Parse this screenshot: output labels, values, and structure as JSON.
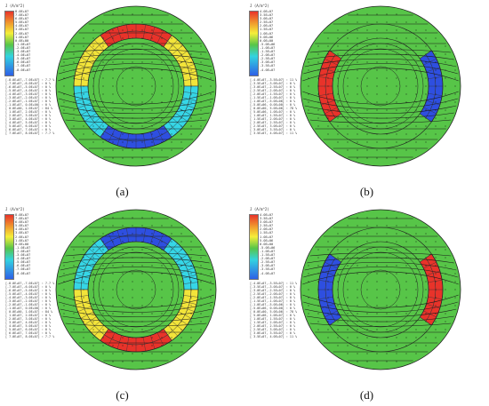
{
  "panels": [
    {
      "id": "a",
      "label": "(a)",
      "colorbar_title": "J (A/m^2)",
      "colorbar_ticks": [
        "8.0E+07",
        "7.0E+07",
        "6.0E+07",
        "5.0E+07",
        "4.0E+07",
        "3.0E+07",
        "2.0E+07",
        "1.0E+07",
        "0.0E+00",
        "-1.0E+07",
        "-2.0E+07",
        "-3.0E+07",
        "-4.0E+07",
        "-5.0E+07",
        "-6.0E+07",
        "-7.0E+07",
        "-8.0E+07"
      ],
      "legend_lines": [
        "[-8.0E+07,-7.0E+07] : 7.7 %",
        "[-7.0E+07,-6.0E+07] : 0 %",
        "[-6.0E+07,-5.0E+07] : 0 %",
        "[-5.0E+07,-4.0E+07] : 0 %",
        "[-4.0E+07,-3.0E+07] : 0 %",
        "[-3.0E+07,-2.0E+07] : 0 %",
        "[-2.0E+07,-1.0E+07] : 0 %",
        "[-1.0E+07, 0.0E+00] : 0 %",
        "[ 0.0E+00, 1.0E+07] : 84 %",
        "[ 1.0E+07, 2.0E+07] : 0 %",
        "[ 2.0E+07, 3.0E+07] : 0 %",
        "[ 3.0E+07, 4.0E+07] : 0 %",
        "[ 4.0E+07, 5.0E+07] : 0 %",
        "[ 5.0E+07, 6.0E+07] : 0 %",
        "[ 6.0E+07, 7.0E+07] : 0 %",
        "[ 7.0E+07, 8.0E+07] : 7.7 %"
      ],
      "coils": [
        {
          "name": "top",
          "start": -125,
          "end": -55,
          "color": "#e8332a"
        },
        {
          "name": "upper-left",
          "start": -180,
          "end": -125,
          "color": "#f2e43a"
        },
        {
          "name": "upper-right",
          "start": -55,
          "end": 0,
          "color": "#f2e43a"
        },
        {
          "name": "lower-right",
          "start": 0,
          "end": 55,
          "color": "#36d6e6"
        },
        {
          "name": "lower-left",
          "start": 125,
          "end": 180,
          "color": "#36d6e6"
        },
        {
          "name": "bottom",
          "start": 55,
          "end": 125,
          "color": "#2e4fe0"
        }
      ]
    },
    {
      "id": "b",
      "label": "(b)",
      "colorbar_title": "J (A/m^2)",
      "colorbar_ticks": [
        "4.0E+07",
        "3.5E+07",
        "3.0E+07",
        "2.5E+07",
        "2.0E+07",
        "1.5E+07",
        "1.0E+07",
        "5.0E+06",
        "0.0E+00",
        "-5.0E+06",
        "-1.0E+07",
        "-1.5E+07",
        "-2.0E+07",
        "-2.5E+07",
        "-3.0E+07",
        "-3.5E+07",
        "-4.0E+07"
      ],
      "legend_lines": [
        "[-4.0E+07,-3.5E+07] : 11 %",
        "[-3.5E+07,-3.0E+07] : 0 %",
        "[-3.0E+07,-2.5E+07] : 0 %",
        "[-2.5E+07,-2.0E+07] : 0 %",
        "[-2.0E+07,-1.5E+07] : 0 %",
        "[-1.5E+07,-1.0E+07] : 0 %",
        "[-1.0E+07,-5.0E+06] : 0 %",
        "[-5.0E+06, 0.0E+00] : 0 %",
        "[ 0.0E+00, 5.0E+06] : 78 %",
        "[ 5.0E+06, 1.0E+07] : 0 %",
        "[ 1.0E+07, 1.5E+07] : 0 %",
        "[ 1.5E+07, 2.0E+07] : 0 %",
        "[ 2.0E+07, 2.5E+07] : 0 %",
        "[ 2.5E+07, 3.0E+07] : 0 %",
        "[ 3.0E+07, 3.5E+07] : 0 %",
        "[ 3.5E+07, 4.0E+07] : 11 %"
      ],
      "coils": [
        {
          "name": "left",
          "start": 145,
          "end": 215,
          "color": "#e8332a"
        },
        {
          "name": "right",
          "start": -35,
          "end": 35,
          "color": "#2e4fe0"
        }
      ]
    },
    {
      "id": "c",
      "label": "(c)",
      "colorbar_title": "J (A/m^2)",
      "colorbar_ticks": [
        "8.0E+07",
        "7.0E+07",
        "6.0E+07",
        "5.0E+07",
        "4.0E+07",
        "3.0E+07",
        "2.0E+07",
        "1.0E+07",
        "0.0E+00",
        "-1.0E+07",
        "-2.0E+07",
        "-3.0E+07",
        "-4.0E+07",
        "-5.0E+07",
        "-6.0E+07",
        "-7.0E+07",
        "-8.0E+07"
      ],
      "legend_lines": [
        "[-8.0E+07,-7.0E+07] : 7.7 %",
        "[-7.0E+07,-6.0E+07] : 0 %",
        "[-6.0E+07,-5.0E+07] : 0 %",
        "[-5.0E+07,-4.0E+07] : 0 %",
        "[-4.0E+07,-3.0E+07] : 0 %",
        "[-3.0E+07,-2.0E+07] : 0 %",
        "[-2.0E+07,-1.0E+07] : 0 %",
        "[-1.0E+07, 0.0E+00] : 0 %",
        "[ 0.0E+00, 1.0E+07] : 84 %",
        "[ 1.0E+07, 2.0E+07] : 0 %",
        "[ 2.0E+07, 3.0E+07] : 0 %",
        "[ 3.0E+07, 4.0E+07] : 0 %",
        "[ 4.0E+07, 5.0E+07] : 0 %",
        "[ 5.0E+07, 6.0E+07] : 0 %",
        "[ 6.0E+07, 7.0E+07] : 0 %",
        "[ 7.0E+07, 8.0E+07] : 7.7 %"
      ],
      "coils": [
        {
          "name": "top",
          "start": -125,
          "end": -55,
          "color": "#2e4fe0"
        },
        {
          "name": "upper-left",
          "start": -180,
          "end": -125,
          "color": "#36d6e6"
        },
        {
          "name": "upper-right",
          "start": -55,
          "end": 0,
          "color": "#36d6e6"
        },
        {
          "name": "lower-right",
          "start": 0,
          "end": 55,
          "color": "#f2e43a"
        },
        {
          "name": "lower-left",
          "start": 125,
          "end": 180,
          "color": "#f2e43a"
        },
        {
          "name": "bottom",
          "start": 55,
          "end": 125,
          "color": "#e8332a"
        }
      ]
    },
    {
      "id": "d",
      "label": "(d)",
      "colorbar_title": "J (A/m^2)",
      "colorbar_ticks": [
        "4.0E+07",
        "3.5E+07",
        "3.0E+07",
        "2.5E+07",
        "2.0E+07",
        "1.5E+07",
        "1.0E+07",
        "5.0E+06",
        "0.0E+00",
        "-5.0E+06",
        "-1.0E+07",
        "-1.5E+07",
        "-2.0E+07",
        "-2.5E+07",
        "-3.0E+07",
        "-3.5E+07",
        "-4.0E+07"
      ],
      "legend_lines": [
        "[-4.0E+07,-3.5E+07] : 11 %",
        "[-3.5E+07,-3.0E+07] : 0 %",
        "[-3.0E+07,-2.5E+07] : 0 %",
        "[-2.5E+07,-2.0E+07] : 0 %",
        "[-2.0E+07,-1.5E+07] : 0 %",
        "[-1.5E+07,-1.0E+07] : 0 %",
        "[-1.0E+07,-5.0E+06] : 0 %",
        "[-5.0E+06, 0.0E+00] : 0 %",
        "[ 0.0E+00, 5.0E+06] : 78 %",
        "[ 5.0E+06, 1.0E+07] : 0 %",
        "[ 1.0E+07, 1.5E+07] : 0 %",
        "[ 1.5E+07, 2.0E+07] : 0 %",
        "[ 2.0E+07, 2.5E+07] : 0 %",
        "[ 2.5E+07, 3.0E+07] : 0 %",
        "[ 3.0E+07, 3.5E+07] : 0 %",
        "[ 3.5E+07, 4.0E+07] : 11 %"
      ],
      "coils": [
        {
          "name": "left",
          "start": 145,
          "end": 215,
          "color": "#2e4fe0"
        },
        {
          "name": "right",
          "start": -35,
          "end": 35,
          "color": "#e8332a"
        }
      ]
    }
  ],
  "colors": {
    "field_green": "#57c548",
    "line_dark": "#1a1a1a"
  }
}
